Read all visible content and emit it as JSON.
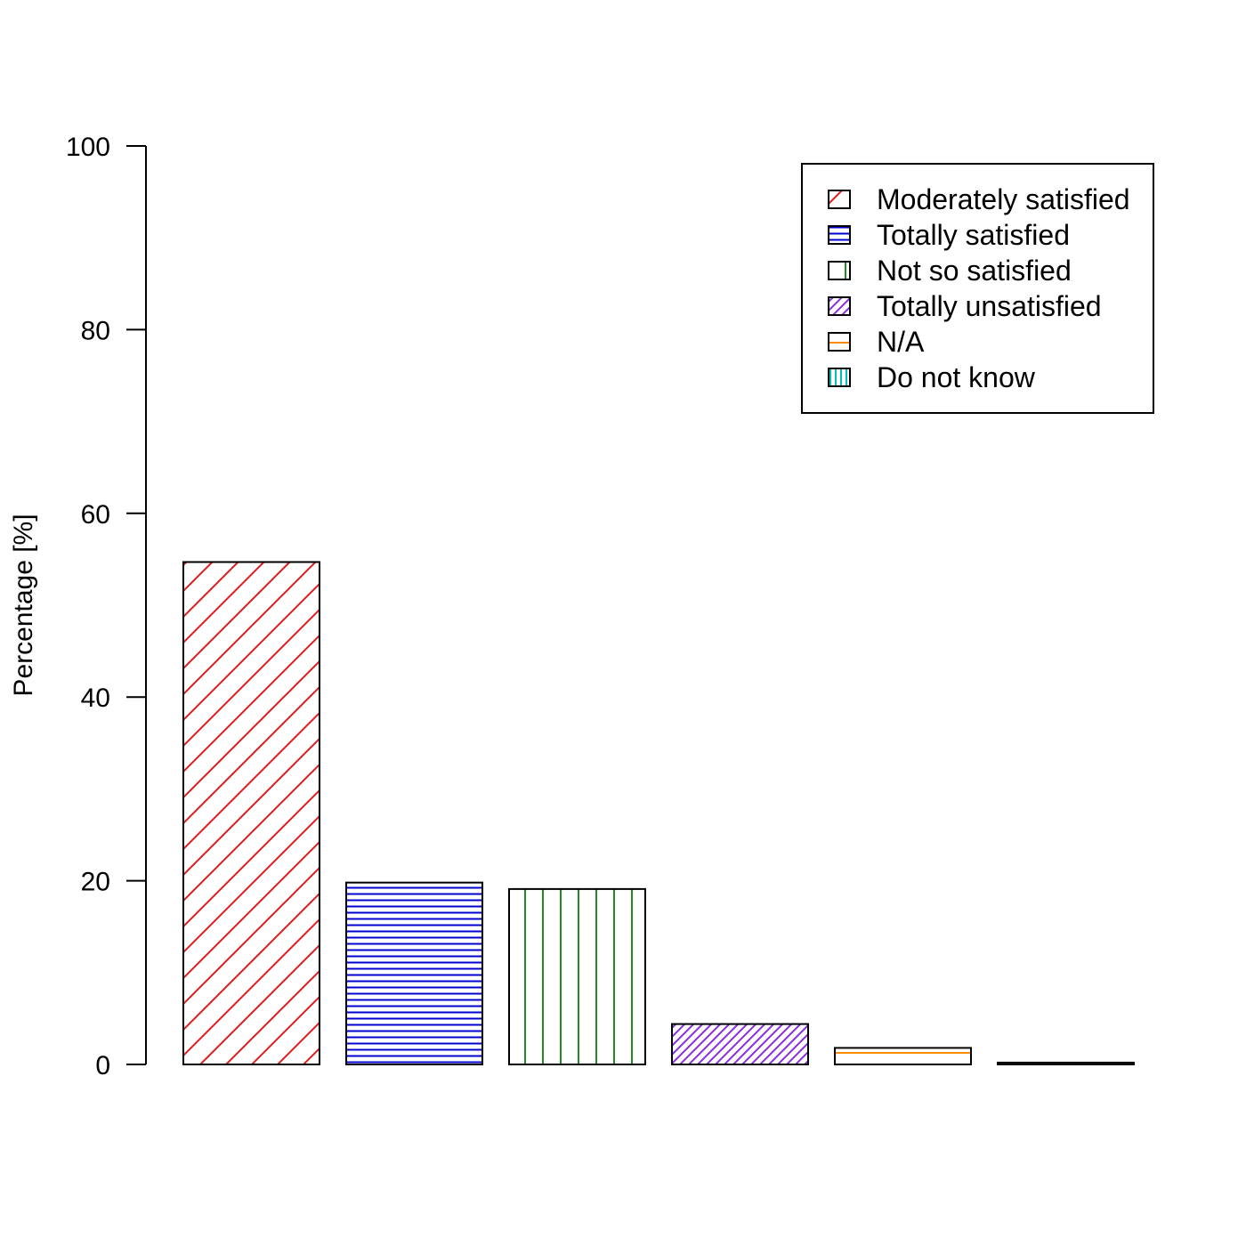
{
  "chart_data": {
    "type": "bar",
    "title": "",
    "xlabel": "",
    "ylabel": "Percentage [%]",
    "ylim": [
      0,
      100
    ],
    "yticks": [
      0,
      20,
      40,
      60,
      80,
      100
    ],
    "grid": false,
    "legend_position": "top-right",
    "categories": [
      "Moderately satisfied",
      "Totally satisfied",
      "Not so satisfied",
      "Totally unsatisfied",
      "N/A",
      "Do not know"
    ],
    "values": [
      54.7,
      19.8,
      19.1,
      4.4,
      1.8,
      0.2
    ],
    "colors": [
      "#e41a1c",
      "#0000cc",
      "#228b22",
      "#8a2be2",
      "#ff8c00",
      "#00bfbf"
    ],
    "patterns": [
      "diagonal-wide",
      "horizontal",
      "vertical",
      "diagonal-dense",
      "horizontal-sparse",
      "vertical-dense"
    ]
  }
}
